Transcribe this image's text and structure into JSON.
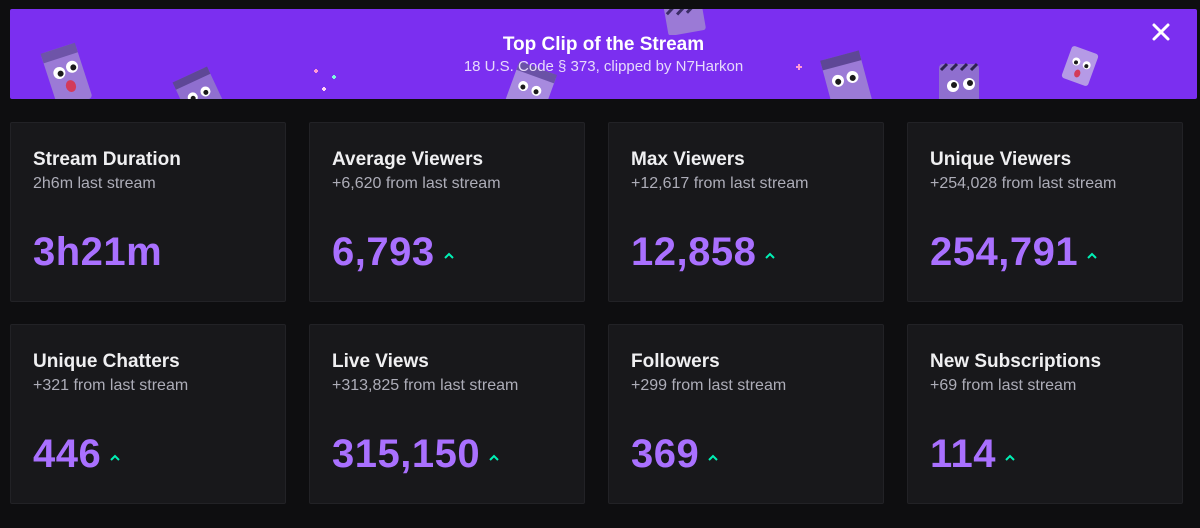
{
  "banner": {
    "title": "Top Clip of the Stream",
    "subtitle": "18 U.S. Code § 373, clipped by N7Harkon",
    "background_color": "#7b2ff0",
    "close_icon": "close-icon",
    "decoration_icon": "mascot-emote-icon"
  },
  "stats": [
    {
      "title": "Stream Duration",
      "comparison": "2h6m last stream",
      "value": "3h21m",
      "trend": ""
    },
    {
      "title": "Average Viewers",
      "comparison": "+6,620 from last stream",
      "value": "6,793",
      "trend": "up"
    },
    {
      "title": "Max Viewers",
      "comparison": "+12,617 from last stream",
      "value": "12,858",
      "trend": "up"
    },
    {
      "title": "Unique Viewers",
      "comparison": "+254,028 from last stream",
      "value": "254,791",
      "trend": "up"
    },
    {
      "title": "Unique Chatters",
      "comparison": "+321 from last stream",
      "value": "446",
      "trend": "up"
    },
    {
      "title": "Live Views",
      "comparison": "+313,825 from last stream",
      "value": "315,150",
      "trend": "up"
    },
    {
      "title": "Followers",
      "comparison": "+299 from last stream",
      "value": "369",
      "trend": "up"
    },
    {
      "title": "New Subscriptions",
      "comparison": "+69 from last stream",
      "value": "114",
      "trend": "up"
    }
  ],
  "colors": {
    "value": "#a970ff",
    "trend_up": "#00f0b5",
    "card_bg": "#18181b",
    "page_bg": "#0e0e10"
  }
}
